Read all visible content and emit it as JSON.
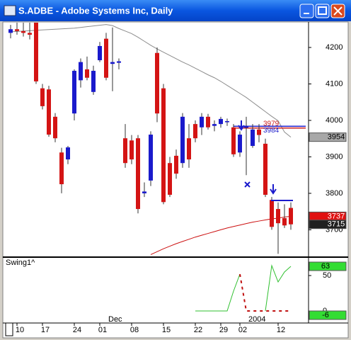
{
  "window": {
    "title": "S.ADBE - Adobe Systems Inc, Daily"
  },
  "chart_data": [
    {
      "type": "candlestick",
      "categories": [
        null,
        "10",
        null,
        null,
        null,
        "17",
        null,
        null,
        null,
        null,
        "24",
        null,
        null,
        null,
        "01",
        null,
        null,
        null,
        null,
        "08",
        null,
        null,
        null,
        null,
        "15",
        null,
        null,
        null,
        null,
        "22",
        null,
        null,
        null,
        "29",
        null,
        null,
        "02",
        null,
        null,
        null,
        null,
        null,
        "12",
        null,
        null
      ],
      "x_groups": [
        {
          "label": "Dec",
          "index": 15
        },
        {
          "label": "2004",
          "index": 37
        }
      ],
      "open": [
        4240,
        4250,
        4245,
        4240,
        4268,
        4088,
        4085,
        4010,
        3912,
        3893,
        4019,
        4110,
        4140,
        4078,
        4165,
        4224,
        4155,
        4158,
        3951,
        3945,
        3951,
        3800,
        3835,
        4185,
        4088,
        3883,
        3903,
        3883,
        3951,
        3990,
        3981,
        4010,
        3985,
        3990,
        3995,
        3981,
        3912,
        3980,
        3930,
        3975,
        3936,
        3782,
        3757,
        3732,
        3760
      ],
      "high": [
        4262,
        4268,
        4268,
        4268,
        4268,
        4100,
        4095,
        4020,
        3925,
        3930,
        4140,
        4170,
        4175,
        4150,
        4215,
        4240,
        4255,
        4170,
        3990,
        3960,
        3960,
        3830,
        3970,
        4200,
        4100,
        3900,
        3920,
        4020,
        3990,
        4000,
        4020,
        4018,
        4000,
        4010,
        4005,
        3990,
        3970,
        4010,
        3990,
        3990,
        3950,
        3790,
        3775,
        3770,
        3775
      ],
      "low": [
        4225,
        4235,
        4230,
        4222,
        4100,
        4030,
        3955,
        3940,
        3800,
        3880,
        4000,
        4090,
        4110,
        4070,
        4160,
        4110,
        4080,
        4140,
        3870,
        3880,
        3745,
        3790,
        3820,
        3995,
        3770,
        3790,
        3840,
        3870,
        3870,
        3940,
        3960,
        3975,
        3970,
        3980,
        3985,
        3900,
        3900,
        3850,
        3925,
        3940,
        3790,
        3700,
        3634,
        3705,
        3700
      ],
      "close": [
        4250,
        4245,
        4240,
        4235,
        4107,
        4039,
        3961,
        3951,
        3825,
        3926,
        4136,
        4160,
        4117,
        4136,
        4204,
        4117,
        4160,
        4162,
        3883,
        3893,
        3757,
        3805,
        3961,
        4019,
        3776,
        3796,
        3854,
        4010,
        3893,
        3951,
        4010,
        3981,
        3990,
        4004,
        3998,
        3907,
        3961,
        3985,
        3975,
        3960,
        3796,
        3708,
        3718,
        3712,
        3715
      ],
      "up_color": "#1a1acc",
      "down_color": "#d41414",
      "overlays": [
        {
          "color": "#8c8c8c",
          "values": [
            4243,
            4244,
            4245,
            4246,
            4247,
            4248,
            4249,
            4250,
            4251,
            4252,
            4253,
            4255,
            4257,
            4259,
            4261,
            4263,
            4260,
            4252,
            4245,
            4238,
            4228,
            4217,
            4206,
            4196,
            4187,
            4178,
            4169,
            4160,
            4152,
            4143,
            4134,
            4125,
            4117,
            4107,
            4096,
            4085,
            4074,
            4063,
            4050,
            4037,
            4024,
            4011,
            3999,
            3968,
            3954
          ]
        },
        {
          "color": "#cc1010",
          "values": [
            null,
            null,
            null,
            null,
            null,
            null,
            null,
            null,
            null,
            null,
            null,
            null,
            null,
            null,
            null,
            null,
            null,
            null,
            null,
            null,
            null,
            null,
            3632,
            3640,
            3648,
            3655,
            3662,
            3668,
            3674,
            3680,
            3685,
            3690,
            3695,
            3700,
            3705,
            3709,
            3713,
            3717,
            3721,
            3724,
            3727,
            3730,
            3732,
            3735,
            3737
          ]
        }
      ],
      "levels": [
        {
          "value": 3979,
          "color": "#cc2020"
        },
        {
          "value": 3984,
          "color": "#2020cc"
        }
      ],
      "price_tags": [
        {
          "value": 3954,
          "color": "#a8a8a8",
          "text_color": "#000"
        },
        {
          "value": 3737,
          "color": "#e01010",
          "text_color": "#fff"
        },
        {
          "value": 3715,
          "color": "#202020",
          "text_color": "#fff"
        }
      ],
      "ylim": [
        3627,
        4268
      ],
      "yticks": [
        3700,
        3800,
        3900,
        4000,
        4100,
        4200
      ]
    },
    {
      "type": "line",
      "title": "Swing1^",
      "series": [
        {
          "color": "#30c030",
          "values": [
            null,
            null,
            null,
            null,
            null,
            null,
            null,
            null,
            null,
            null,
            null,
            null,
            null,
            null,
            null,
            null,
            null,
            null,
            null,
            null,
            null,
            null,
            null,
            null,
            null,
            null,
            null,
            null,
            null,
            0,
            0,
            0,
            0,
            0,
            0,
            28,
            52,
            null,
            null,
            null,
            0,
            64,
            41,
            55,
            63
          ]
        },
        {
          "color": "#c01010",
          "values": [
            null,
            null,
            null,
            null,
            null,
            null,
            null,
            null,
            null,
            null,
            null,
            null,
            null,
            null,
            null,
            null,
            null,
            null,
            null,
            null,
            null,
            null,
            null,
            null,
            null,
            null,
            null,
            null,
            null,
            null,
            null,
            null,
            null,
            null,
            null,
            null,
            52,
            0,
            0,
            0,
            0,
            0,
            0,
            0,
            0
          ]
        }
      ],
      "tags": [
        {
          "value": 63,
          "color": "#33dd33"
        },
        {
          "value": -6,
          "color": "#33dd33"
        }
      ],
      "ylim": [
        -16,
        75
      ],
      "yticks": [
        0,
        50
      ]
    }
  ]
}
